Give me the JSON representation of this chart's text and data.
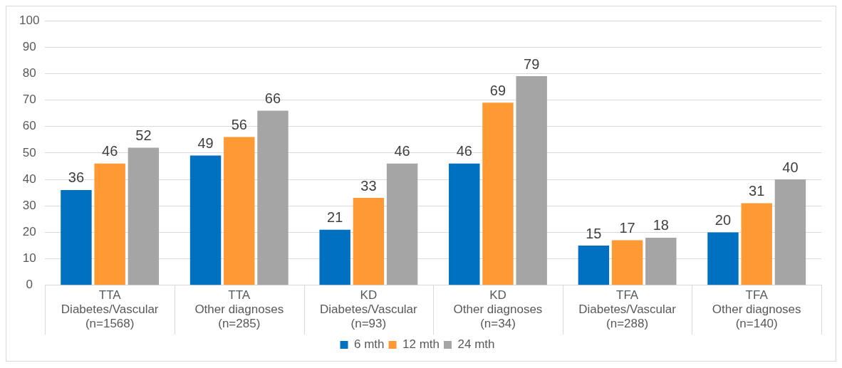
{
  "chart_data": {
    "type": "bar",
    "categories": [
      "TTA\nDiabetes/Vascular\n(n=1568)",
      "TTA\nOther diagnoses\n(n=285)",
      "KD\nDiabetes/Vascular\n(n=93)",
      "KD\nOther diagnoses\n(n=34)",
      "TFA\nDiabetes/Vascular\n(n=288)",
      "TFA\nOther diagnoses\n(n=140)"
    ],
    "series": [
      {
        "name": "6 mth",
        "color": "#0070c0",
        "values": [
          36,
          49,
          21,
          46,
          15,
          20
        ]
      },
      {
        "name": "12 mth",
        "color": "#ff9933",
        "values": [
          46,
          56,
          33,
          69,
          17,
          31
        ]
      },
      {
        "name": "24 mth",
        "color": "#a5a5a5",
        "values": [
          52,
          66,
          46,
          79,
          18,
          40
        ]
      }
    ],
    "ylim": [
      0,
      100
    ],
    "yticks": [
      0,
      10,
      20,
      30,
      40,
      50,
      60,
      70,
      80,
      90,
      100
    ],
    "grid": "y",
    "legend": "bottom",
    "data_labels": true
  }
}
